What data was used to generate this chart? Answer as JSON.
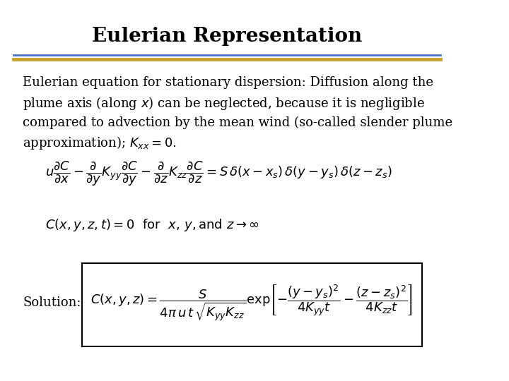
{
  "title": "Eulerian Representation",
  "title_fontsize": 20,
  "background_color": "#ffffff",
  "separator_color_top": "#4472C4",
  "separator_color_bottom": "#C9A227",
  "body_text": "Eulerian equation for stationary dispersion: Diffusion along the\nplume axis (along $x$) can be neglected, because it is negligible\ncompared to advection by the mean wind (so-called slender plume\napproximation); $K_{xx} = 0$.",
  "body_fontsize": 13,
  "eq1": "$u\\dfrac{\\partial C}{\\partial x} - \\dfrac{\\partial}{\\partial y}K_{yy}\\dfrac{\\partial C}{\\partial y} - \\dfrac{\\partial}{\\partial z}K_{zz}\\dfrac{\\partial C}{\\partial z} = S\\,\\delta(x-x_s)\\,\\delta(y-y_s)\\,\\delta(z-z_s)$",
  "eq1_fontsize": 13,
  "eq2": "$C(x,y,z,t)=0 \\quad \\mathrm{for} \\quad x,\\,y,\\mathrm{and}\\; z\\rightarrow\\infty$",
  "eq2_fontsize": 13,
  "solution_label": "Solution:",
  "solution_eq": "$C(x,y,z) = \\dfrac{S}{4\\pi\\, u\\, t\\,\\sqrt{K_{yy}K_{zz}}} \\exp\\!\\left[-\\dfrac{(y-y_s)^2}{4K_{yy}t} - \\dfrac{(z-z_s)^2}{4K_{zz}t}\\right]$",
  "solution_fontsize": 13,
  "text_color": "#000000"
}
